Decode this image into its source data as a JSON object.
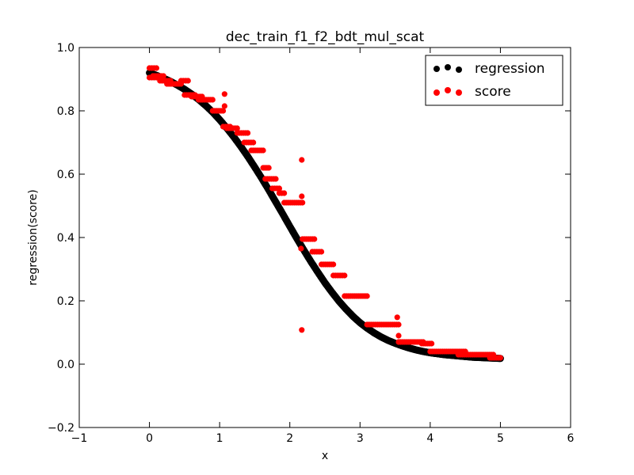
{
  "chart_data": {
    "type": "scatter",
    "title": "dec_train_f1_f2_bdt_mul_scat",
    "xlabel": "x",
    "ylabel": "regression(score)",
    "xlim": [
      -1,
      6
    ],
    "ylim": [
      -0.2,
      1.0
    ],
    "xticks": [
      "−1",
      "0",
      "1",
      "2",
      "3",
      "4",
      "5",
      "6"
    ],
    "xtick_values": [
      -1,
      0,
      1,
      2,
      3,
      4,
      5,
      6
    ],
    "yticks": [
      "−0.2",
      "0.0",
      "0.2",
      "0.4",
      "0.6",
      "0.8",
      "1.0"
    ],
    "ytick_values": [
      -0.2,
      0.0,
      0.2,
      0.4,
      0.6,
      0.8,
      1.0
    ],
    "grid": false,
    "legend_position": "top-right",
    "series": [
      {
        "name": "regression",
        "color": "#000000",
        "x": [
          0.0,
          0.1,
          0.2,
          0.3,
          0.4,
          0.5,
          0.6,
          0.7,
          0.8,
          0.9,
          1.0,
          1.1,
          1.2,
          1.3,
          1.4,
          1.5,
          1.6,
          1.7,
          1.8,
          1.9,
          2.0,
          2.1,
          2.2,
          2.3,
          2.4,
          2.5,
          2.6,
          2.7,
          2.8,
          2.9,
          3.0,
          3.1,
          3.2,
          3.3,
          3.4,
          3.5,
          3.6,
          3.7,
          3.8,
          3.9,
          4.0,
          4.1,
          4.2,
          4.3,
          4.4,
          4.5,
          4.6,
          4.7,
          4.8,
          4.9,
          5.0
        ],
        "y": [
          0.92,
          0.912,
          0.903,
          0.893,
          0.881,
          0.868,
          0.853,
          0.836,
          0.817,
          0.796,
          0.772,
          0.746,
          0.718,
          0.688,
          0.656,
          0.622,
          0.587,
          0.55,
          0.512,
          0.474,
          0.435,
          0.397,
          0.36,
          0.324,
          0.29,
          0.257,
          0.227,
          0.199,
          0.174,
          0.151,
          0.131,
          0.114,
          0.099,
          0.086,
          0.075,
          0.066,
          0.058,
          0.051,
          0.045,
          0.04,
          0.036,
          0.033,
          0.03,
          0.028,
          0.026,
          0.024,
          0.022,
          0.021,
          0.02,
          0.019,
          0.018
        ]
      },
      {
        "name": "score",
        "color": "#ff0000",
        "segments": [
          [
            0.0,
            0.1,
            0.935
          ],
          [
            0.0,
            0.1,
            0.905
          ],
          [
            0.05,
            0.2,
            0.91
          ],
          [
            0.15,
            0.3,
            0.895
          ],
          [
            0.25,
            0.45,
            0.885
          ],
          [
            0.45,
            0.55,
            0.895
          ],
          [
            0.5,
            0.65,
            0.85
          ],
          [
            0.6,
            0.75,
            0.845
          ],
          [
            0.7,
            0.9,
            0.835
          ],
          [
            0.9,
            1.05,
            0.8
          ],
          [
            1.05,
            1.15,
            0.75
          ],
          [
            1.1,
            1.25,
            0.745
          ],
          [
            1.25,
            1.4,
            0.73
          ],
          [
            1.35,
            1.48,
            0.7
          ],
          [
            1.45,
            1.62,
            0.675
          ],
          [
            1.62,
            1.7,
            0.62
          ],
          [
            1.65,
            1.8,
            0.585
          ],
          [
            1.75,
            1.85,
            0.555
          ],
          [
            1.85,
            1.92,
            0.54
          ],
          [
            1.92,
            2.18,
            0.51
          ],
          [
            2.18,
            2.35,
            0.395
          ],
          [
            2.32,
            2.45,
            0.355
          ],
          [
            2.45,
            2.62,
            0.315
          ],
          [
            2.62,
            2.78,
            0.28
          ],
          [
            2.78,
            3.1,
            0.215
          ],
          [
            3.1,
            3.55,
            0.125
          ],
          [
            3.55,
            3.9,
            0.07
          ],
          [
            3.88,
            4.02,
            0.065
          ],
          [
            4.0,
            4.5,
            0.04
          ],
          [
            4.4,
            4.9,
            0.03
          ],
          [
            4.85,
            5.0,
            0.02
          ]
        ],
        "outliers": [
          [
            1.07,
            0.853
          ],
          [
            1.07,
            0.815
          ],
          [
            2.17,
            0.645
          ],
          [
            2.17,
            0.53
          ],
          [
            2.16,
            0.365
          ],
          [
            2.17,
            0.108
          ],
          [
            3.53,
            0.148
          ],
          [
            3.55,
            0.09
          ]
        ]
      }
    ]
  }
}
